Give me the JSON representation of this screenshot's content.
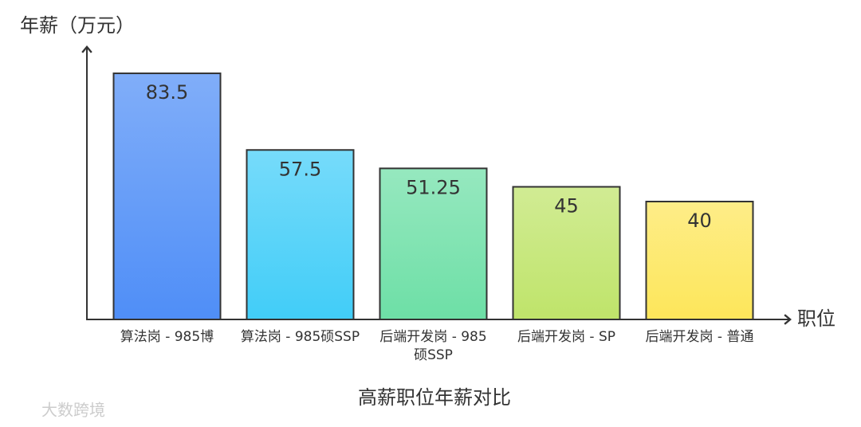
{
  "chart_data": {
    "type": "bar",
    "title": "高薪职位年薪对比",
    "y_label": "年薪（万元）",
    "x_label": "职位",
    "categories": [
      "算法岗 - 985博",
      "算法岗 - 985硕SSP",
      "后端开发岗 - 985硕SSP",
      "后端开发岗 - SP",
      "后端开发岗 - 普通"
    ],
    "values": [
      83.5,
      57.5,
      51.25,
      45,
      40
    ],
    "colors": [
      "#4f8ef7",
      "#41cdf8",
      "#6ddfa6",
      "#bfe46a",
      "#fde65a"
    ],
    "ylim": [
      0,
      90
    ],
    "watermark": "大数跨境"
  }
}
